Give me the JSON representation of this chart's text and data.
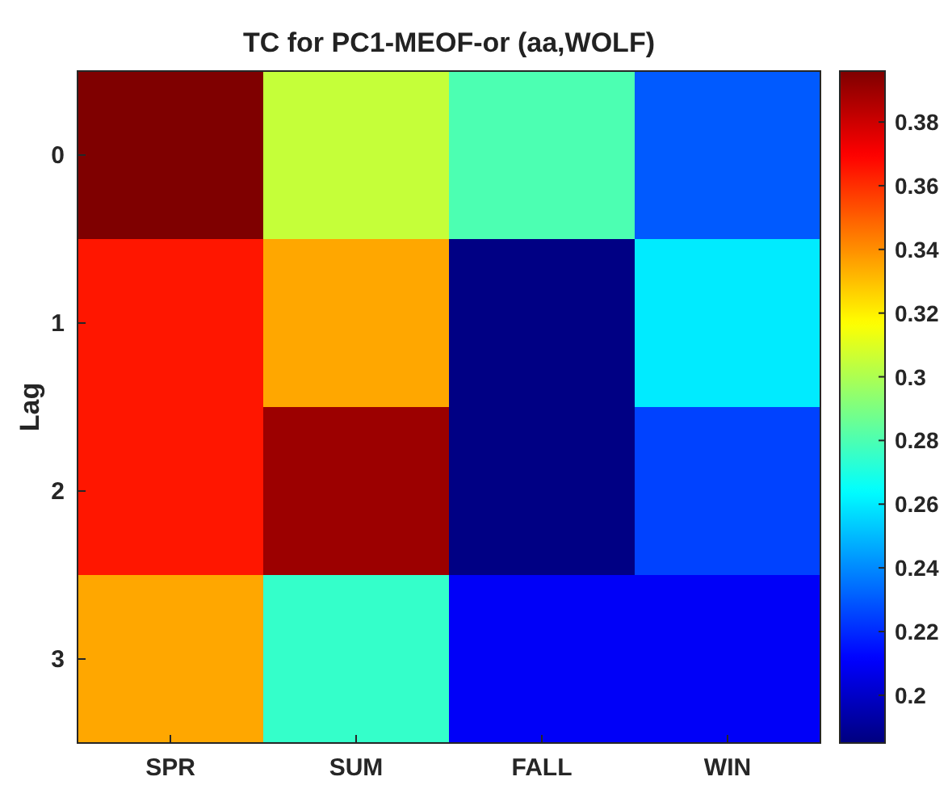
{
  "chart_data": {
    "type": "heatmap",
    "title": "TC for PC1-MEOF-or (aa,WOLF)",
    "ylabel": "Lag",
    "categories": [
      "SPR",
      "SUM",
      "FALL",
      "WIN"
    ],
    "y_categories": [
      "0",
      "1",
      "2",
      "3"
    ],
    "cells": [
      [
        0.396,
        0.305,
        0.28,
        0.23
      ],
      [
        0.365,
        0.335,
        0.186,
        0.26
      ],
      [
        0.365,
        0.39,
        0.186,
        0.225
      ],
      [
        0.335,
        0.275,
        0.21,
        0.21
      ]
    ],
    "clim": [
      0.185,
      0.396
    ],
    "cticks": [
      0.2,
      0.22,
      0.24,
      0.26,
      0.28,
      0.3,
      0.32,
      0.34,
      0.36,
      0.38
    ]
  }
}
